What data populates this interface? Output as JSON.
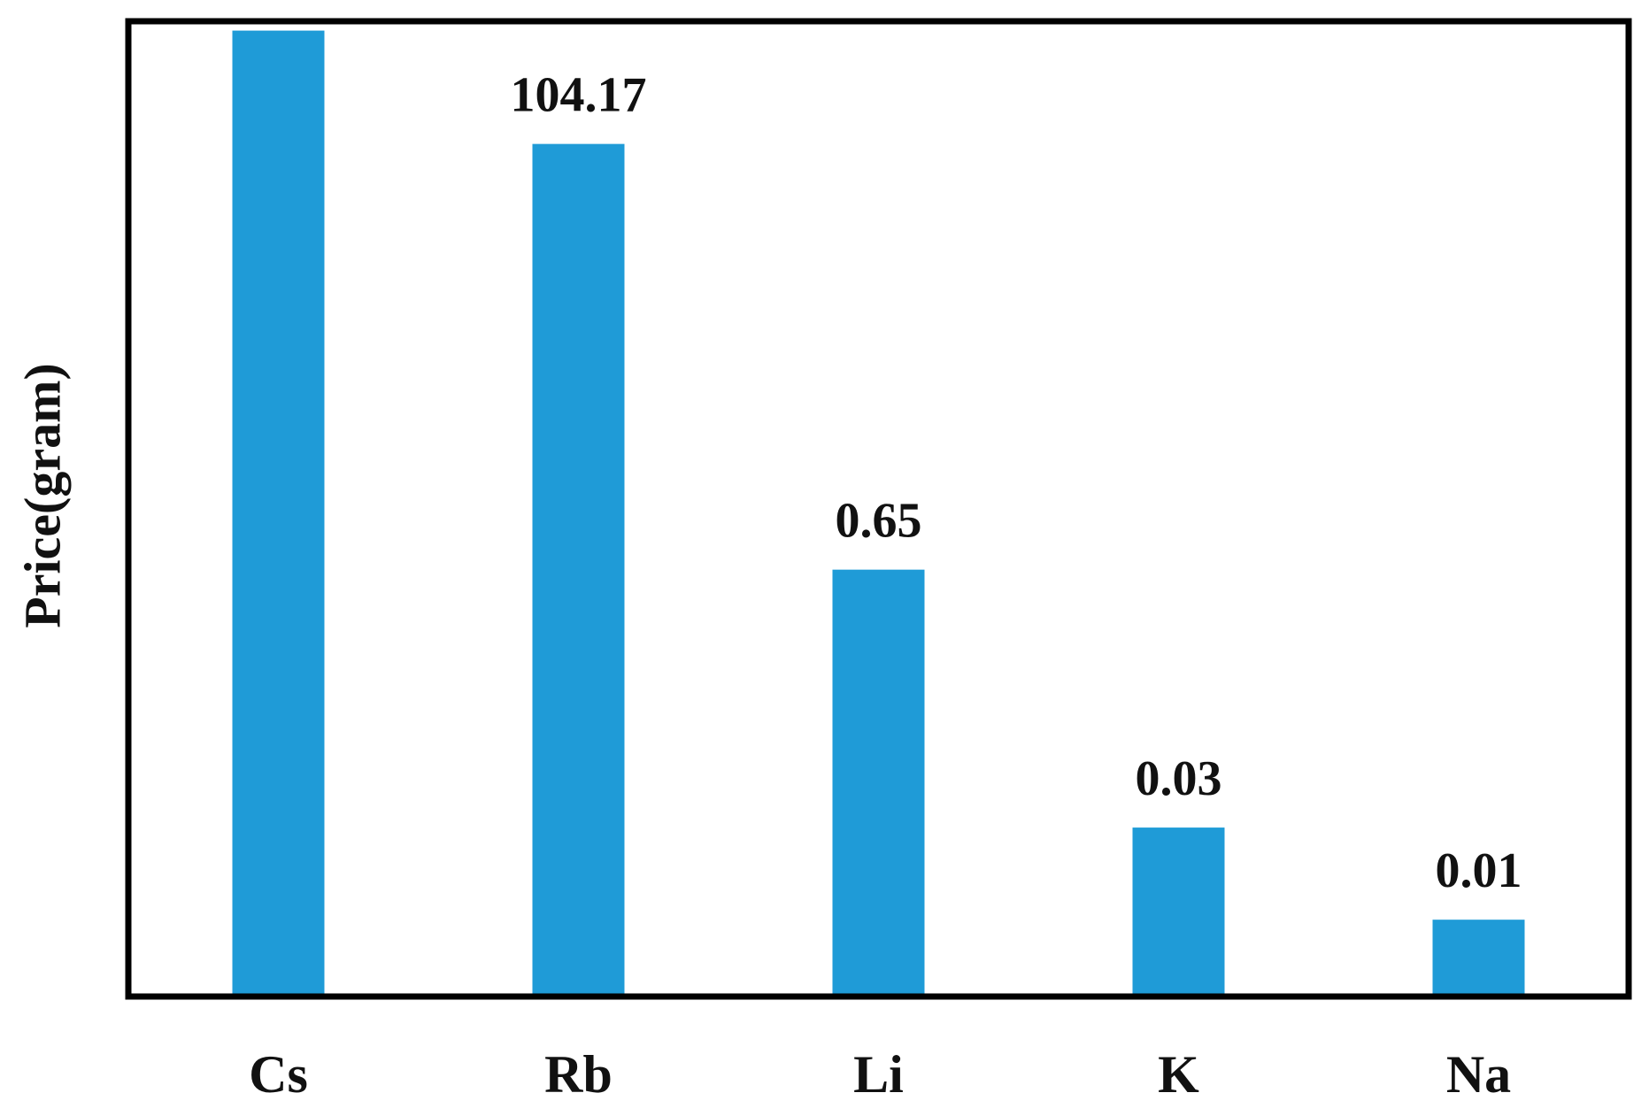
{
  "chart_data": {
    "type": "bar",
    "y_label": "Price(gram)",
    "categories": [
      "Cs",
      "Rb",
      "Li",
      "K",
      "Na"
    ],
    "values": [
      402.45,
      104.17,
      0.65,
      0.03,
      0.01
    ],
    "color": "#1f9bd7",
    "log_scale": true,
    "ylim": [
      0.004,
      450
    ]
  }
}
